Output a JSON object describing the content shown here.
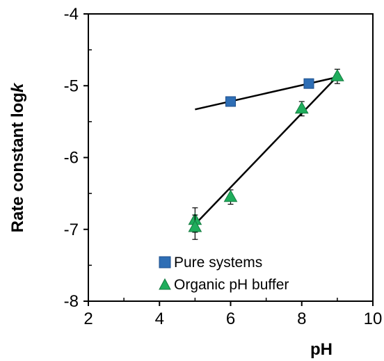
{
  "chart_data": {
    "type": "scatter",
    "xlabel": "pH",
    "ylabel_prefix": "Rate constant  log",
    "ylabel_var": "k",
    "xlim": [
      2,
      10
    ],
    "ylim": [
      -8,
      -4
    ],
    "xticks": [
      2,
      4,
      6,
      8,
      10
    ],
    "yticks": [
      -4,
      -5,
      -6,
      -7,
      -8
    ],
    "grid": false,
    "legend_position": "bottom-center",
    "series": [
      {
        "name": "Pure systems",
        "marker": "square",
        "color": "#2e6eb5",
        "points": [
          {
            "x": 6.0,
            "y": -5.22
          },
          {
            "x": 8.2,
            "y": -4.97
          }
        ],
        "trendline": {
          "x": [
            5.0,
            9.0
          ],
          "y": [
            -5.33,
            -4.88
          ]
        }
      },
      {
        "name": "Organic pH buffer",
        "marker": "triangle",
        "color": "#1fad5c",
        "points": [
          {
            "x": 5.0,
            "y": -6.87,
            "err": 0.17
          },
          {
            "x": 5.0,
            "y": -6.97,
            "err": 0.17
          },
          {
            "x": 6.0,
            "y": -6.55,
            "err": 0.1
          },
          {
            "x": 8.0,
            "y": -5.32,
            "err": 0.1
          },
          {
            "x": 9.0,
            "y": -4.87,
            "err": 0.1
          }
        ],
        "trendline": {
          "x": [
            5.0,
            9.0
          ],
          "y": [
            -6.93,
            -4.87
          ]
        }
      }
    ]
  }
}
